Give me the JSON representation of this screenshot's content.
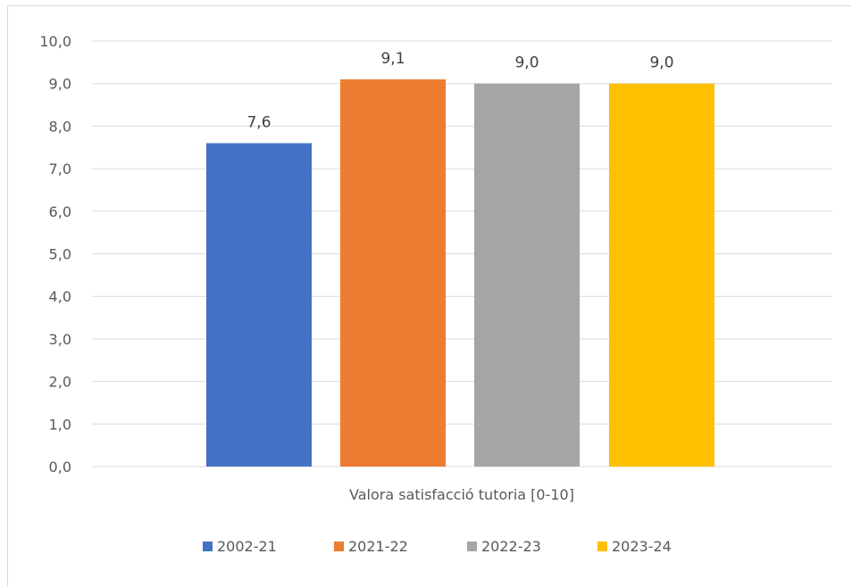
{
  "chart_data": {
    "type": "bar",
    "categories": [
      "Valora satisfacció tutoria [0-10]"
    ],
    "series": [
      {
        "name": "2002-21",
        "values": [
          7.6
        ],
        "label": "7,6",
        "color": "#4472c4"
      },
      {
        "name": "2021-22",
        "values": [
          9.1
        ],
        "label": "9,1",
        "color": "#ed7d31"
      },
      {
        "name": "2022-23",
        "values": [
          9.0
        ],
        "label": "9,0",
        "color": "#a5a5a5"
      },
      {
        "name": "2023-24",
        "values": [
          9.0
        ],
        "label": "9,0",
        "color": "#ffc000"
      }
    ],
    "ylim": [
      0,
      10
    ],
    "yticks": [
      "0,0",
      "1,0",
      "2,0",
      "3,0",
      "4,0",
      "5,0",
      "6,0",
      "7,0",
      "8,0",
      "9,0",
      "10,0"
    ],
    "grid": true,
    "legend_position": "bottom",
    "title": "",
    "xlabel": "",
    "ylabel": ""
  }
}
